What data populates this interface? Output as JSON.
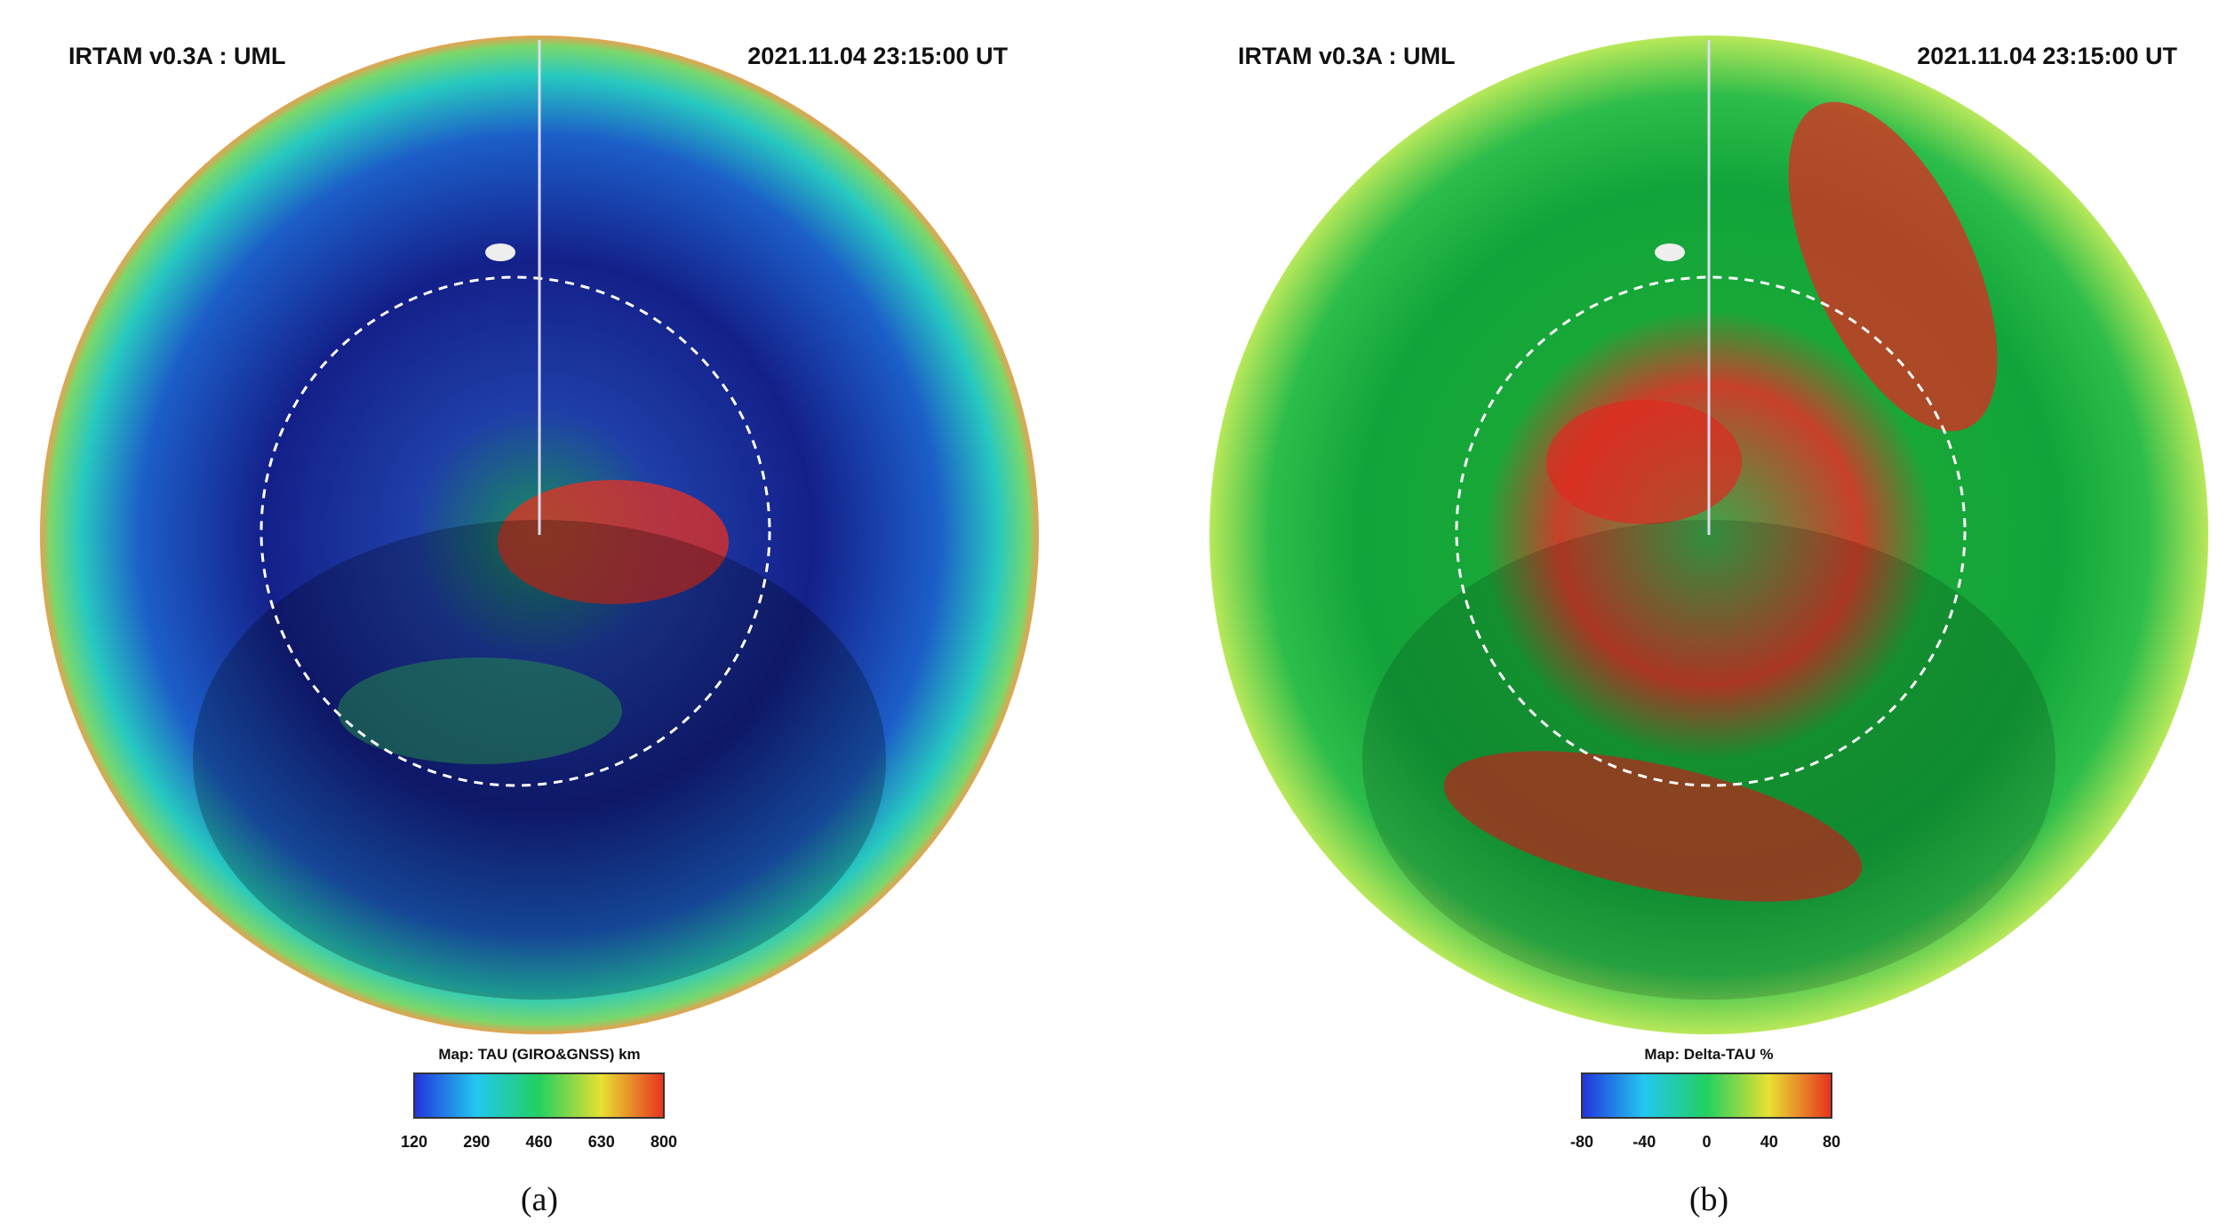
{
  "panels": [
    {
      "title": "IRTAM v0.3A : UML",
      "timestamp": "2021.11.04 23:15:00 UT",
      "colorbar": {
        "label": "Map: TAU (GIRO&GNSS) km",
        "ticks": [
          120,
          290,
          460,
          630,
          800
        ]
      },
      "caption": "(a)"
    },
    {
      "title": "IRTAM v0.3A : UML",
      "timestamp": "2021.11.04 23:15:00 UT",
      "colorbar": {
        "label": "Map: Delta-TAU %",
        "ticks": [
          -80,
          -40,
          0,
          40,
          80
        ]
      },
      "caption": "(b)"
    }
  ]
}
